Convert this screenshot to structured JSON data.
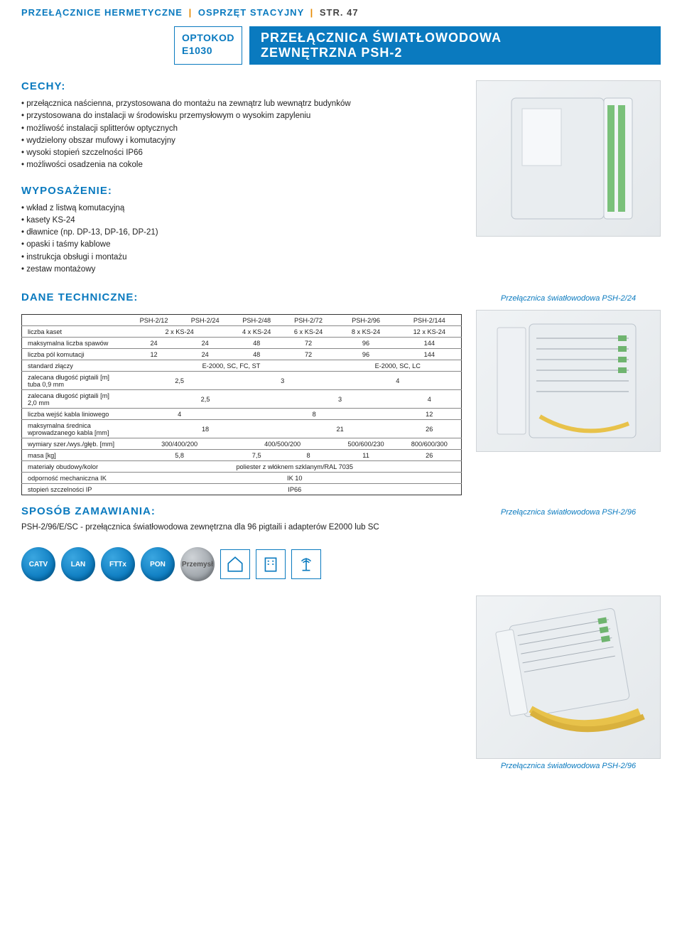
{
  "header": {
    "breadcrumb_a": "PRZEŁĄCZNICE HERMETYCZNE",
    "breadcrumb_b": "OSPRZĘT STACYJNY",
    "breadcrumb_page": "STR. 47",
    "code_line1": "OPTOKOD",
    "code_line2": "E1030",
    "title_line1": "PRZEŁĄCZNICA ŚWIATŁOWODOWA",
    "title_line2": "ZEWNĘTRZNA PSH-2"
  },
  "sections": {
    "cechy_h": "CECHY:",
    "cechy": [
      "przełącznica naścienna, przystosowana do montażu na zewnątrz lub wewnątrz budynków",
      "przystosowana do instalacji w środowisku przemysłowym o wysokim zapyleniu",
      "możliwość instalacji splitterów optycznych",
      "wydzielony obszar mufowy i komutacyjny",
      "wysoki stopień szczelności IP66",
      "możliwości osadzenia na cokole"
    ],
    "wypos_h": "WYPOSAŻENIE:",
    "wypos": [
      "wkład z listwą komutacyjną",
      "kasety KS-24",
      "dławnice (np. DP-13, DP-16, DP-21)",
      "opaski i taśmy kablowe",
      "instrukcja obsługi i montażu",
      "zestaw montażowy"
    ],
    "dane_h": "DANE TECHNICZNE:",
    "order_h": "SPOSÓB ZAMAWIANIA:",
    "order_text": "PSH-2/96/E/SC - przełącznica światłowodowa zewnętrzna dla 96 pigtaili i adapterów E2000 lub SC"
  },
  "captions": {
    "c1": "Przełącznica światłowodowa PSH-2/24",
    "c2": "Przełącznica światłowodowa PSH-2/96",
    "c3": "Przełącznica światłowodowa PSH-2/96"
  },
  "table": {
    "head": [
      "",
      "PSH-2/12",
      "PSH-2/24",
      "PSH-2/48",
      "PSH-2/72",
      "PSH-2/96",
      "PSH-2/144"
    ],
    "rows": [
      {
        "label": "liczba kaset",
        "cells": [
          [
            "2 x KS-24",
            2
          ],
          [
            "4 x KS-24",
            1
          ],
          [
            "6 x KS-24",
            1
          ],
          [
            "8 x KS-24",
            1
          ],
          [
            "12 x KS-24",
            1
          ]
        ]
      },
      {
        "label": "maksymalna liczba spawów",
        "cells": [
          [
            "24",
            1
          ],
          [
            "24",
            1
          ],
          [
            "48",
            1
          ],
          [
            "72",
            1
          ],
          [
            "96",
            1
          ],
          [
            "144",
            1
          ]
        ]
      },
      {
        "label": "liczba pól komutacji",
        "cells": [
          [
            "12",
            1
          ],
          [
            "24",
            1
          ],
          [
            "48",
            1
          ],
          [
            "72",
            1
          ],
          [
            "96",
            1
          ],
          [
            "144",
            1
          ]
        ]
      },
      {
        "label": "standard złączy",
        "cells": [
          [
            "E-2000, SC, FC, ST",
            4
          ],
          [
            "E-2000, SC, LC",
            2
          ]
        ]
      },
      {
        "label": "zalecana długość pigtaili [m]\ntuba 0,9 mm",
        "cells": [
          [
            "2,5",
            2
          ],
          [
            "3",
            2
          ],
          [
            "4",
            2
          ]
        ]
      },
      {
        "label": "zalecana długość pigtaili [m]\n2,0 mm",
        "cells": [
          [
            "2,5",
            3
          ],
          [
            "3",
            2
          ],
          [
            "4",
            1
          ]
        ]
      },
      {
        "label": "liczba wejść kabla liniowego",
        "cells": [
          [
            "4",
            2
          ],
          [
            "8",
            3
          ],
          [
            "12",
            1
          ]
        ]
      },
      {
        "label": "maksymalna średnica\nwprowadzanego kabla [mm]",
        "cells": [
          [
            "18",
            3
          ],
          [
            "21",
            2
          ],
          [
            "26",
            1
          ]
        ]
      },
      {
        "label": "wymiary szer./wys./głęb. [mm]",
        "cells": [
          [
            "300/400/200",
            2
          ],
          [
            "400/500/200",
            2
          ],
          [
            "500/600/230",
            1
          ],
          [
            "800/600/300",
            1
          ]
        ]
      },
      {
        "label": "masa [kg]",
        "cells": [
          [
            "5,8",
            2
          ],
          [
            "7,5",
            1
          ],
          [
            "8",
            1
          ],
          [
            "11",
            1
          ],
          [
            "26",
            1
          ]
        ]
      },
      {
        "label": "materiały obudowy/kolor",
        "cells": [
          [
            "poliester z włóknem szklanym/RAL 7035",
            6
          ]
        ]
      },
      {
        "label": "odporność mechaniczna IK",
        "cells": [
          [
            "IK 10",
            6
          ]
        ]
      },
      {
        "label": "stopień szczelności IP",
        "cells": [
          [
            "IP66",
            6
          ]
        ]
      }
    ]
  },
  "badges": {
    "b1": "CATV",
    "b2": "LAN",
    "b3": "FTTx",
    "b4": "PON",
    "b5": "Przemysł"
  },
  "colors": {
    "brand": "#0a7abf",
    "accent": "#e68a00"
  }
}
